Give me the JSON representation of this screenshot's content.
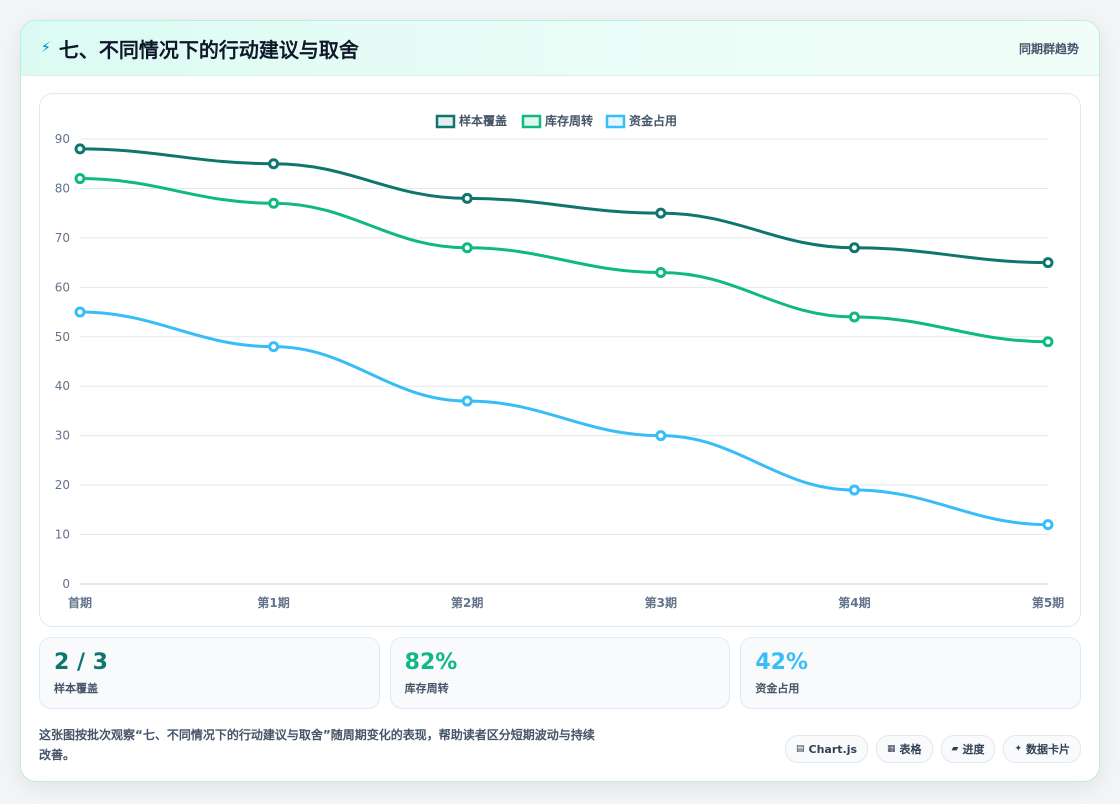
{
  "header": {
    "icon": "lightning-icon",
    "title": "七、不同情况下的行动建议与取舍",
    "right": "同期群趋势"
  },
  "chart_data": {
    "type": "line",
    "categories": [
      "首期",
      "第1期",
      "第2期",
      "第3期",
      "第4期",
      "第5期"
    ],
    "series": [
      {
        "name": "样本覆盖",
        "color": "#0f766e",
        "values": [
          88,
          85,
          78,
          75,
          68,
          65
        ]
      },
      {
        "name": "库存周转",
        "color": "#10b981",
        "values": [
          82,
          77,
          68,
          63,
          54,
          49
        ]
      },
      {
        "name": "资金占用",
        "color": "#38bdf8",
        "values": [
          55,
          48,
          37,
          30,
          19,
          12
        ]
      }
    ],
    "ylim": [
      0,
      90
    ],
    "yticks": [
      0,
      10,
      20,
      30,
      40,
      50,
      60,
      70,
      80,
      90
    ],
    "grid": true,
    "legend": "top-center"
  },
  "stats": [
    {
      "value": "2 / 3",
      "label": "样本覆盖",
      "color": "#0f766e"
    },
    {
      "value": "82%",
      "label": "库存周转",
      "color": "#10b981"
    },
    {
      "value": "42%",
      "label": "资金占用",
      "color": "#38bdf8"
    }
  ],
  "footer": {
    "note": "这张图按批次观察“七、不同情况下的行动建议与取舍”随周期变化的表现，帮助读者区分短期波动与持续改善。",
    "chips": [
      {
        "icon": "chart-icon",
        "glyph": "▤",
        "label": "Chart.js"
      },
      {
        "icon": "table-icon",
        "glyph": "▦",
        "label": "表格"
      },
      {
        "icon": "progress-icon",
        "glyph": "▰",
        "label": "进度"
      },
      {
        "icon": "sparkle-icon",
        "glyph": "✦",
        "label": "数据卡片"
      }
    ]
  }
}
